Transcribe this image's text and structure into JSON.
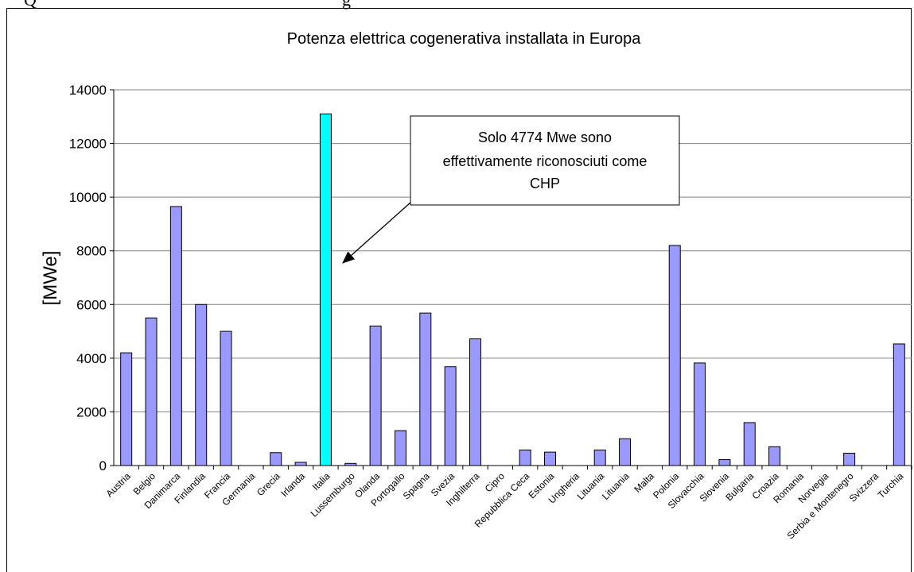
{
  "header_partial": "Q",
  "header_partial2": "g",
  "chart_data": {
    "type": "bar",
    "title": "Potenza elettrica cogenerativa installata in Europa",
    "xlabel": "",
    "ylabel": "[MWe]",
    "ylim": [
      0,
      14000
    ],
    "yticks": [
      0,
      2000,
      4000,
      6000,
      8000,
      10000,
      12000,
      14000
    ],
    "grid": true,
    "legend": "none",
    "categories": [
      "Austria",
      "Belgio",
      "Danimarca",
      "Finlandia",
      "Francia",
      "Germania",
      "Grecia",
      "Irlanda",
      "Italia",
      "Lussemburgo",
      "Olanda",
      "Portogallo",
      "Spagna",
      "Svezia",
      "Inghilterra",
      "Cipro",
      "Repubblica Ceca",
      "Estonia",
      "Ungheria",
      "Lituania",
      "Lituania",
      "Malta",
      "Polonia",
      "Slovacchia",
      "Slovenia",
      "Bulgaria",
      "Croazia",
      "Romania",
      "Norvegia",
      "Serbia e Montenegro",
      "Svizzera",
      "Turchia"
    ],
    "values": [
      4200,
      5500,
      9650,
      6000,
      5000,
      0,
      480,
      120,
      13100,
      80,
      5200,
      1300,
      5680,
      3680,
      4720,
      0,
      580,
      500,
      0,
      580,
      1000,
      0,
      8200,
      3820,
      220,
      1600,
      700,
      0,
      0,
      460,
      0,
      4530
    ],
    "highlight_index": 8,
    "colors": {
      "bar": "#9999ff",
      "highlight": "#00ffff",
      "stroke": "#000000",
      "grid": "#808080"
    },
    "annotation": {
      "lines": [
        "Solo 4774 Mwe sono",
        "effettivamente riconosciuti come",
        "CHP"
      ],
      "points_to": "Italia"
    }
  }
}
